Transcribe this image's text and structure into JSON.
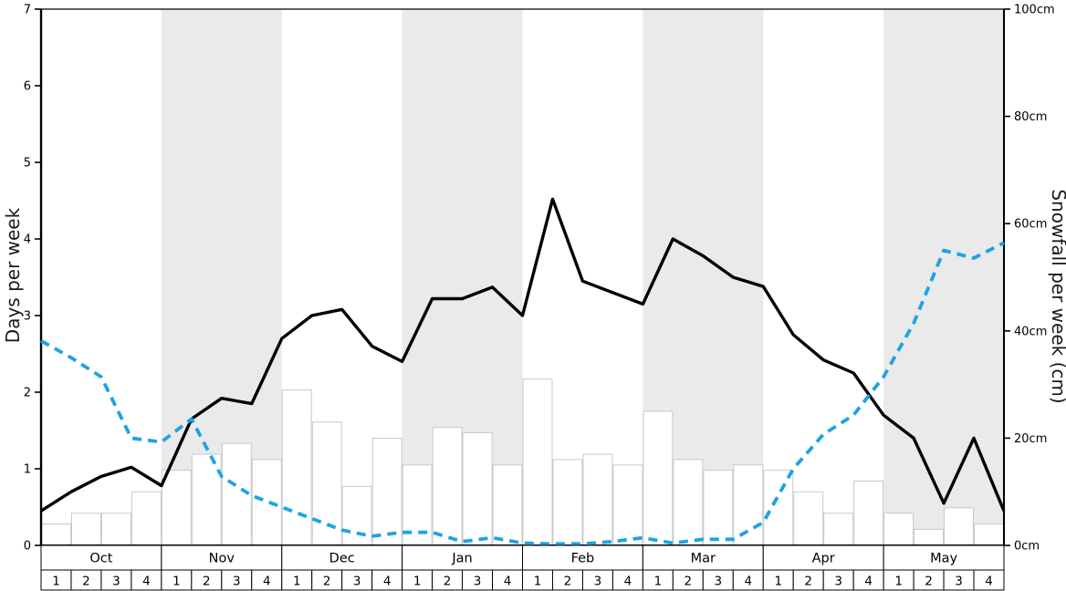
{
  "chart_data": {
    "type": "line",
    "title": "",
    "left_axis": {
      "label": "Days per week",
      "range": [
        0,
        7
      ],
      "ticks": [
        0,
        1,
        2,
        3,
        4,
        5,
        6,
        7
      ]
    },
    "right_axis": {
      "label": "Snowfall per week (cm)",
      "range": [
        0,
        100
      ],
      "tick_values": [
        0,
        20,
        40,
        60,
        80,
        100
      ],
      "tick_labels": [
        "0cm",
        "20cm",
        "40cm",
        "60cm",
        "80cm",
        "100cm"
      ]
    },
    "x_axis": {
      "months": [
        "Oct",
        "Nov",
        "Dec",
        "Jan",
        "Feb",
        "Mar",
        "Apr",
        "May"
      ],
      "weeks_per_month": 4,
      "week_labels": [
        "1",
        "2",
        "3",
        "4"
      ],
      "shaded_months": [
        "Nov",
        "Jan",
        "Mar",
        "May"
      ]
    },
    "series": [
      {
        "name": "snow-days-solid",
        "type": "line",
        "line_style": "solid",
        "color": "#000000",
        "axis": "left",
        "values": [
          0.45,
          0.7,
          0.9,
          1.02,
          0.78,
          1.65,
          1.92,
          1.85,
          2.7,
          3.0,
          3.08,
          2.6,
          2.4,
          3.22,
          3.22,
          3.37,
          3.0,
          4.52,
          3.45,
          3.3,
          3.15,
          4.0,
          3.78,
          3.5,
          3.38,
          2.75,
          2.42,
          2.25,
          1.7,
          1.4,
          0.55,
          1.4,
          0.45
        ]
      },
      {
        "name": "rain-days-dashed",
        "type": "line",
        "line_style": "dashed",
        "color": "#1da4e0",
        "axis": "left",
        "values": [
          2.67,
          2.45,
          2.2,
          1.4,
          1.35,
          1.65,
          0.9,
          0.65,
          0.5,
          0.35,
          0.2,
          0.12,
          0.17,
          0.17,
          0.05,
          0.1,
          0.03,
          0.02,
          0.02,
          0.05,
          0.1,
          0.03,
          0.08,
          0.08,
          0.3,
          1.0,
          1.45,
          1.7,
          2.2,
          2.9,
          3.85,
          3.75,
          3.95
        ]
      },
      {
        "name": "snowfall-bars",
        "type": "bar",
        "fill": "#ffffff",
        "border": "#c9c9c9",
        "axis": "right",
        "values_cm": [
          4,
          6,
          6,
          10,
          14,
          17,
          19,
          16,
          29,
          23,
          11,
          20,
          15,
          22,
          21,
          15,
          31,
          16,
          17,
          15,
          25,
          16,
          14,
          15,
          14,
          10,
          6,
          12,
          6,
          3,
          7,
          4
        ]
      }
    ],
    "colors": {
      "band": "#eaeaea",
      "background": "#ffffff",
      "solid_line": "#000000",
      "dashed_line": "#1da4e0",
      "bar_fill": "#ffffff",
      "bar_border": "#c9c9c9"
    },
    "legend": "none",
    "grid": "off"
  }
}
